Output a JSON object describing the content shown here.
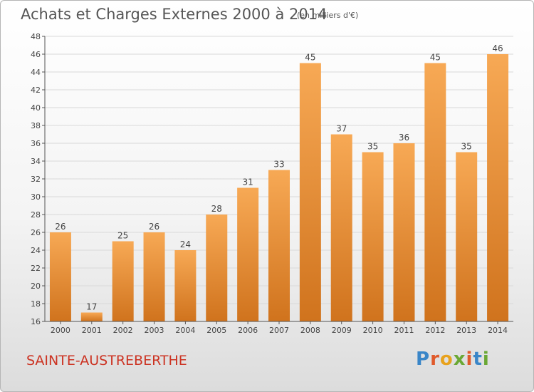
{
  "title": "Achats et Charges Externes 2000 à 2014",
  "subtitle": "(en milliers d'€)",
  "location": "SAINTE-AUSTREBERTHE",
  "brand": {
    "text": "Proxiti",
    "letters": [
      {
        "char": "P",
        "color": "#3a86c8"
      },
      {
        "char": "r",
        "color": "#e05a2b"
      },
      {
        "char": "o",
        "color": "#e8a21d"
      },
      {
        "char": "x",
        "color": "#6aa834"
      },
      {
        "char": "i",
        "color": "#e05a2b"
      },
      {
        "char": "t",
        "color": "#3a86c8"
      },
      {
        "char": "i",
        "color": "#6aa834"
      }
    ]
  },
  "colors": {
    "bar_light": "#f7a955",
    "bar_dark": "#d0731d",
    "axis": "#555555",
    "grid": "#d9d9d9"
  },
  "chart_data": {
    "type": "bar",
    "categories": [
      "2000",
      "2001",
      "2002",
      "2003",
      "2004",
      "2005",
      "2006",
      "2007",
      "2008",
      "2009",
      "2010",
      "2011",
      "2012",
      "2013",
      "2014"
    ],
    "values": [
      26,
      17,
      25,
      26,
      24,
      28,
      31,
      33,
      45,
      37,
      35,
      36,
      45,
      35,
      46
    ],
    "ylim": [
      16,
      48
    ],
    "yticks": [
      16,
      18,
      20,
      22,
      24,
      26,
      28,
      30,
      32,
      34,
      36,
      38,
      40,
      42,
      44,
      46,
      48
    ],
    "grid": true,
    "data_labels": true
  }
}
